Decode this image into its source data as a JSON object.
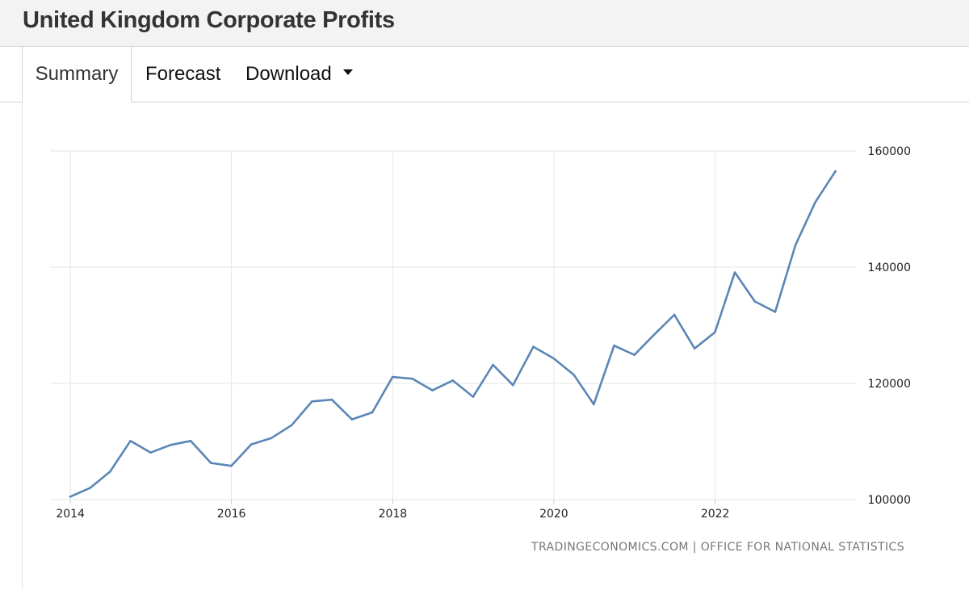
{
  "header": {
    "title": "United Kingdom Corporate Profits"
  },
  "tabs": [
    {
      "label": "Summary",
      "active": true
    },
    {
      "label": "Forecast",
      "active": false
    },
    {
      "label": "Download",
      "active": false
    }
  ],
  "source_note": "TRADINGECONOMICS.COM | OFFICE FOR NATIONAL STATISTICS",
  "colors": {
    "line": "#5b86b5",
    "grid": "#e6e6e6",
    "title_bar": "#f3f3f3"
  },
  "chart_data": {
    "type": "line",
    "title": "",
    "xlabel": "",
    "ylabel": "",
    "xlim": [
      "2013-10-01",
      "2023-10-01"
    ],
    "ylim": [
      100000,
      160000
    ],
    "y_ticks": [
      100000,
      120000,
      140000,
      160000
    ],
    "x_ticks": [
      "2014",
      "2016",
      "2018",
      "2020",
      "2022"
    ],
    "y_axis_position": "right",
    "grid": true,
    "legend": "none",
    "series": [
      {
        "x": [
          "2013-12-31",
          "2014-03-31",
          "2014-06-30",
          "2014-09-30",
          "2014-12-31",
          "2015-03-31",
          "2015-06-30",
          "2015-09-30",
          "2015-12-31",
          "2016-03-31",
          "2016-06-30",
          "2016-09-30",
          "2016-12-31",
          "2017-03-31",
          "2017-06-30",
          "2017-09-30",
          "2017-12-31",
          "2018-03-31",
          "2018-06-30",
          "2018-09-30",
          "2018-12-31",
          "2019-03-31",
          "2019-06-30",
          "2019-09-30",
          "2019-12-31",
          "2020-03-31",
          "2020-06-30",
          "2020-09-30",
          "2020-12-31",
          "2021-03-31",
          "2021-06-30",
          "2021-09-30",
          "2021-12-31",
          "2022-03-31",
          "2022-06-30",
          "2022-09-30",
          "2022-12-31",
          "2023-03-31",
          "2023-06-30"
        ],
        "values": [
          100500,
          102000,
          104800,
          110100,
          108100,
          109400,
          110100,
          106300,
          105800,
          109500,
          110600,
          112800,
          116900,
          117200,
          113800,
          115000,
          121100,
          120800,
          118800,
          120500,
          117700,
          123200,
          119700,
          126300,
          124300,
          121500,
          116400,
          126500,
          124900,
          128400,
          131800,
          126000,
          128800,
          139100,
          134100,
          132300,
          143800,
          151200,
          156500
        ]
      }
    ]
  }
}
